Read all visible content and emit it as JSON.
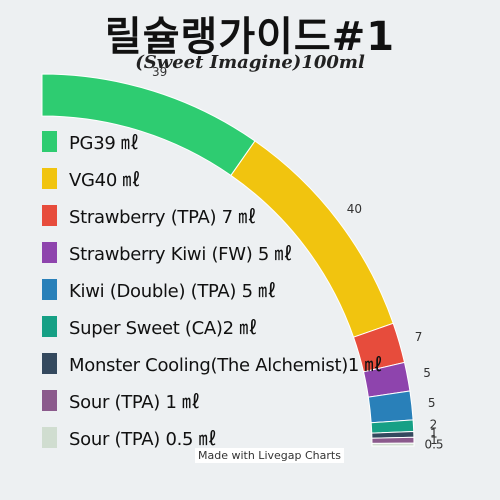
{
  "chart_data": {
    "type": "pie",
    "style": "quarter-donut",
    "title": "릴슐랭가이드#1",
    "subtitle": "(Sweet Imagine)100ml",
    "categories": [
      "PG39 ㎖",
      "VG40 ㎖",
      "Strawberry (TPA) 7 ㎖",
      "Strawberry Kiwi (FW) 5 ㎖",
      "Kiwi (Double) (TPA) 5 ㎖",
      "Super Sweet (CA)2 ㎖",
      "Monster Cooling(The Alchemist)1 ㎖",
      "Sour (TPA) 1 ㎖",
      "Sour (TPA) 0.5 ㎖"
    ],
    "values": [
      39,
      40,
      7,
      5,
      5,
      2,
      1,
      1,
      0.5
    ],
    "data_labels": [
      "39",
      "40",
      "7",
      "5",
      "5",
      "2",
      "1",
      "1",
      "0.5"
    ],
    "colors": [
      "#2ecc71",
      "#f1c40f",
      "#e74c3c",
      "#8e44ad",
      "#2980b9",
      "#16a085",
      "#34495e",
      "#8b5a8c",
      "#d0ddd0"
    ],
    "legend": "left"
  },
  "credit": "Made with Livegap Charts"
}
